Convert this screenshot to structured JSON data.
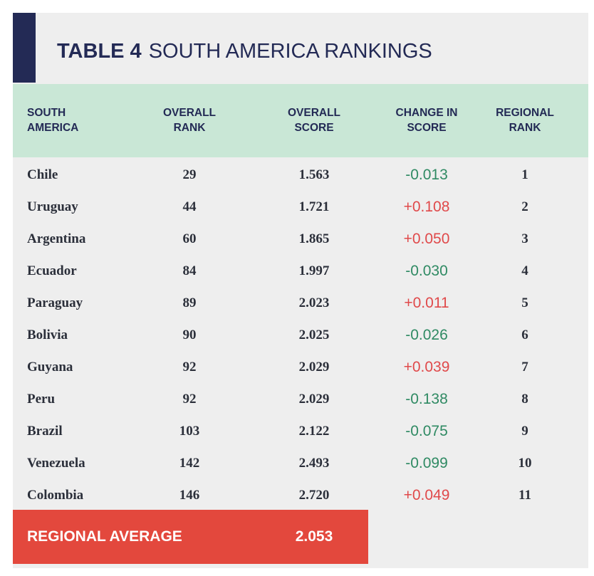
{
  "title": {
    "number": "TABLE 4",
    "name": "SOUTH AMERICA RANKINGS"
  },
  "headers": {
    "country": [
      "SOUTH",
      "AMERICA"
    ],
    "overall_rank": [
      "OVERALL",
      "RANK"
    ],
    "overall_score": [
      "OVERALL",
      "SCORE"
    ],
    "change": [
      "CHANGE IN",
      "SCORE"
    ],
    "regional_rank": [
      "REGIONAL",
      "RANK"
    ]
  },
  "rows": [
    {
      "country": "Chile",
      "overall_rank": "29",
      "overall_score": "1.563",
      "change": "-0.013",
      "regional_rank": "1"
    },
    {
      "country": "Uruguay",
      "overall_rank": "44",
      "overall_score": "1.721",
      "change": "+0.108",
      "regional_rank": "2"
    },
    {
      "country": "Argentina",
      "overall_rank": "60",
      "overall_score": "1.865",
      "change": "+0.050",
      "regional_rank": "3"
    },
    {
      "country": "Ecuador",
      "overall_rank": "84",
      "overall_score": "1.997",
      "change": "-0.030",
      "regional_rank": "4"
    },
    {
      "country": "Paraguay",
      "overall_rank": "89",
      "overall_score": "2.023",
      "change": "+0.011",
      "regional_rank": "5"
    },
    {
      "country": "Bolivia",
      "overall_rank": "90",
      "overall_score": "2.025",
      "change": "-0.026",
      "regional_rank": "6"
    },
    {
      "country": "Guyana",
      "overall_rank": "92",
      "overall_score": "2.029",
      "change": "+0.039",
      "regional_rank": "7"
    },
    {
      "country": "Peru",
      "overall_rank": "92",
      "overall_score": "2.029",
      "change": "-0.138",
      "regional_rank": "8"
    },
    {
      "country": "Brazil",
      "overall_rank": "103",
      "overall_score": "2.122",
      "change": "-0.075",
      "regional_rank": "9"
    },
    {
      "country": "Venezuela",
      "overall_rank": "142",
      "overall_score": "2.493",
      "change": "-0.099",
      "regional_rank": "10"
    },
    {
      "country": "Colombia",
      "overall_rank": "146",
      "overall_score": "2.720",
      "change": "+0.049",
      "regional_rank": "11"
    }
  ],
  "regional_average": {
    "label": "REGIONAL AVERAGE",
    "value": "2.053"
  },
  "colors": {
    "navy": "#232a55",
    "header_green": "#c9e7d6",
    "negative_change": "#2f8a63",
    "positive_change": "#e0494a",
    "average_red": "#e3483d",
    "panel_gray": "#eeeeee"
  }
}
